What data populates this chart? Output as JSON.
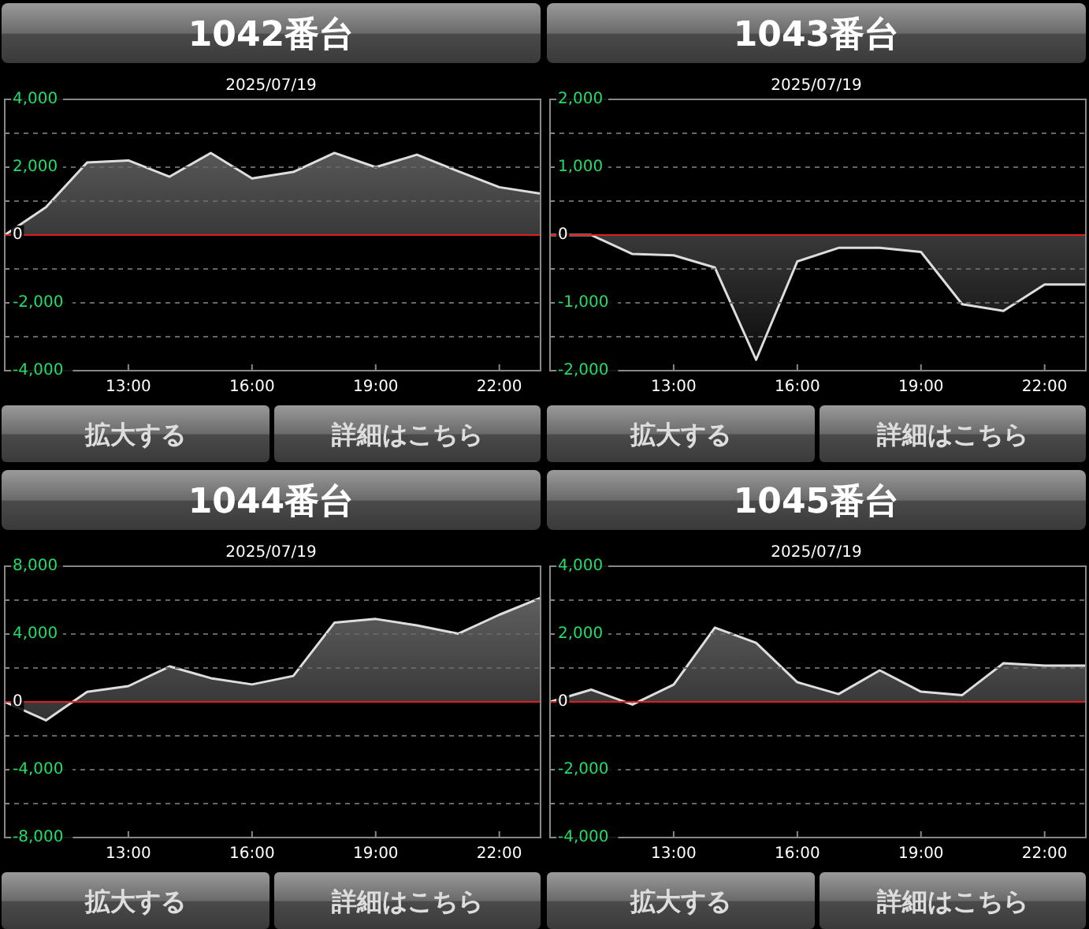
{
  "chart_data": [
    {
      "type": "area",
      "title": "1042番台",
      "subtitle": "2025/07/19",
      "annotations": [
        "拡大する",
        "詳細はこちら"
      ],
      "xlim": [
        10,
        23
      ],
      "xticks": [
        {
          "value": 13,
          "label": "13:00"
        },
        {
          "value": 16,
          "label": "16:00"
        },
        {
          "value": 19,
          "label": "19:00"
        },
        {
          "value": 22,
          "label": "22:00"
        }
      ],
      "ylim": [
        -4000,
        4000
      ],
      "yticks": [
        {
          "value": -4000,
          "label": "-4,000"
        },
        {
          "value": -3000,
          "label": null
        },
        {
          "value": -2000,
          "label": "-2,000"
        },
        {
          "value": -1000,
          "label": null
        },
        {
          "value": 0,
          "label": "0"
        },
        {
          "value": 1000,
          "label": null
        },
        {
          "value": 2000,
          "label": "2,000"
        },
        {
          "value": 3000,
          "label": null
        },
        {
          "value": 4000,
          "label": "4,000"
        }
      ],
      "grid": "y",
      "ref_lines": [
        {
          "axis": "y",
          "value": 0,
          "color": "#e02020"
        }
      ],
      "x": [
        10,
        11,
        12,
        13,
        14,
        15,
        16,
        17,
        18,
        19,
        20,
        21,
        22,
        23
      ],
      "series": [
        {
          "color": "#dddddd",
          "values": [
            0,
            820,
            2140,
            2200,
            1720,
            2420,
            1670,
            1860,
            2420,
            2000,
            2370,
            1880,
            1410,
            1220
          ]
        }
      ]
    },
    {
      "type": "area",
      "title": "1043番台",
      "subtitle": "2025/07/19",
      "annotations": [
        "拡大する",
        "詳細はこちら"
      ],
      "xlim": [
        10,
        23
      ],
      "xticks": [
        {
          "value": 13,
          "label": "13:00"
        },
        {
          "value": 16,
          "label": "16:00"
        },
        {
          "value": 19,
          "label": "19:00"
        },
        {
          "value": 22,
          "label": "22:00"
        }
      ],
      "ylim": [
        -2000,
        2000
      ],
      "yticks": [
        {
          "value": -2000,
          "label": "-2,000"
        },
        {
          "value": -1500,
          "label": null
        },
        {
          "value": -1000,
          "label": "-1,000"
        },
        {
          "value": -500,
          "label": null
        },
        {
          "value": 0,
          "label": "0"
        },
        {
          "value": 500,
          "label": null
        },
        {
          "value": 1000,
          "label": "1,000"
        },
        {
          "value": 1500,
          "label": null
        },
        {
          "value": 2000,
          "label": "2,000"
        }
      ],
      "grid": "y",
      "ref_lines": [
        {
          "axis": "y",
          "value": 0,
          "color": "#e02020"
        }
      ],
      "x": [
        10,
        11,
        12,
        13,
        14,
        15,
        16,
        17,
        18,
        19,
        20,
        21,
        22,
        23
      ],
      "series": [
        {
          "color": "#dddddd",
          "values": [
            0,
            0,
            -280,
            -300,
            -480,
            -1840,
            -390,
            -190,
            -190,
            -250,
            -1020,
            -1120,
            -730,
            -730
          ]
        }
      ]
    },
    {
      "type": "area",
      "title": "1044番台",
      "subtitle": "2025/07/19",
      "annotations": [
        "拡大する",
        "詳細はこちら"
      ],
      "xlim": [
        10,
        23
      ],
      "xticks": [
        {
          "value": 13,
          "label": "13:00"
        },
        {
          "value": 16,
          "label": "16:00"
        },
        {
          "value": 19,
          "label": "19:00"
        },
        {
          "value": 22,
          "label": "22:00"
        }
      ],
      "ylim": [
        -8000,
        8000
      ],
      "yticks": [
        {
          "value": -8000,
          "label": "-8,000"
        },
        {
          "value": -6000,
          "label": null
        },
        {
          "value": -4000,
          "label": "-4,000"
        },
        {
          "value": -2000,
          "label": null
        },
        {
          "value": 0,
          "label": "0"
        },
        {
          "value": 2000,
          "label": null
        },
        {
          "value": 4000,
          "label": "4,000"
        },
        {
          "value": 6000,
          "label": null
        },
        {
          "value": 8000,
          "label": "8,000"
        }
      ],
      "grid": "y",
      "ref_lines": [
        {
          "axis": "y",
          "value": 0,
          "color": "#e02020"
        }
      ],
      "x": [
        10,
        11,
        12,
        13,
        14,
        15,
        16,
        17,
        18,
        19,
        20,
        21,
        22,
        23
      ],
      "series": [
        {
          "color": "#dddddd",
          "values": [
            0,
            -1090,
            590,
            930,
            2090,
            1400,
            1030,
            1530,
            4670,
            4890,
            4510,
            4020,
            5140,
            6130
          ]
        }
      ]
    },
    {
      "type": "area",
      "title": "1045番台",
      "subtitle": "2025/07/19",
      "annotations": [
        "拡大する",
        "詳細はこちら"
      ],
      "xlim": [
        10,
        23
      ],
      "xticks": [
        {
          "value": 13,
          "label": "13:00"
        },
        {
          "value": 16,
          "label": "16:00"
        },
        {
          "value": 19,
          "label": "19:00"
        },
        {
          "value": 22,
          "label": "22:00"
        }
      ],
      "ylim": [
        -4000,
        4000
      ],
      "yticks": [
        {
          "value": -4000,
          "label": "-4,000"
        },
        {
          "value": -3000,
          "label": null
        },
        {
          "value": -2000,
          "label": "-2,000"
        },
        {
          "value": -1000,
          "label": null
        },
        {
          "value": 0,
          "label": "0"
        },
        {
          "value": 1000,
          "label": null
        },
        {
          "value": 2000,
          "label": "2,000"
        },
        {
          "value": 3000,
          "label": null
        },
        {
          "value": 4000,
          "label": "4,000"
        }
      ],
      "grid": "y",
      "ref_lines": [
        {
          "axis": "y",
          "value": 0,
          "color": "#e02020"
        }
      ],
      "x": [
        10,
        11,
        12,
        13,
        14,
        15,
        16,
        17,
        18,
        19,
        20,
        21,
        22,
        23
      ],
      "series": [
        {
          "color": "#dddddd",
          "values": [
            0,
            360,
            -80,
            510,
            2190,
            1740,
            580,
            230,
            930,
            300,
            200,
            1140,
            1070,
            1070
          ]
        }
      ]
    }
  ]
}
